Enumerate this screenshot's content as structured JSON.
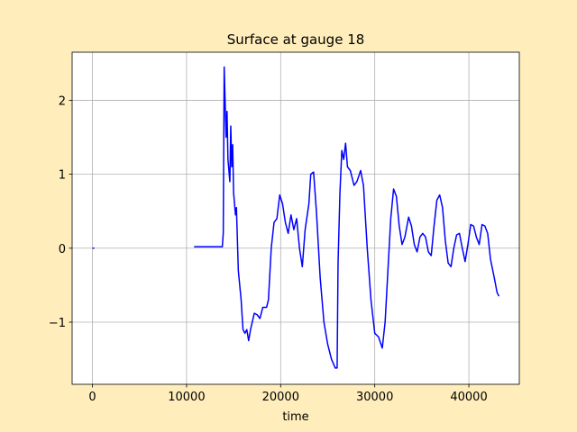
{
  "chart_data": {
    "type": "line",
    "title": "Surface at gauge 18",
    "x_label": "time",
    "x": [
      0,
      200,
      5000,
      10800,
      12000,
      13000,
      13800,
      13900,
      14000,
      14200,
      14300,
      14400,
      14600,
      14700,
      14800,
      14900,
      15000,
      15200,
      15300,
      15500,
      15800,
      16000,
      16200,
      16400,
      16600,
      16800,
      17200,
      17500,
      17800,
      18100,
      18500,
      18700,
      19000,
      19300,
      19600,
      19900,
      20200,
      20500,
      20800,
      21100,
      21400,
      21700,
      22000,
      22300,
      22600,
      23000,
      23200,
      23500,
      23800,
      24200,
      24600,
      25000,
      25400,
      25800,
      26000,
      26100,
      26300,
      26500,
      26700,
      26900,
      27100,
      27400,
      27800,
      28100,
      28500,
      28800,
      29200,
      29600,
      30000,
      30400,
      30800,
      31100,
      31400,
      31700,
      32000,
      32300,
      32600,
      32900,
      33200,
      33600,
      33900,
      34200,
      34500,
      34800,
      35100,
      35400,
      35700,
      36000,
      36300,
      36600,
      36900,
      37200,
      37500,
      37800,
      38100,
      38400,
      38700,
      39000,
      39300,
      39600,
      39900,
      40200,
      40500,
      40800,
      41100,
      41400,
      41700,
      42000,
      42300,
      42700,
      43000,
      43200
    ],
    "values": [
      0,
      0,
      null,
      0.02,
      0.02,
      0.02,
      0.02,
      0.2,
      2.45,
      1.5,
      1.85,
      1.2,
      0.9,
      1.65,
      1.1,
      1.4,
      0.75,
      0.45,
      0.55,
      -0.3,
      -0.7,
      -1.1,
      -1.15,
      -1.1,
      -1.25,
      -1.1,
      -0.88,
      -0.9,
      -0.95,
      -0.8,
      -0.8,
      -0.7,
      0,
      0.35,
      0.4,
      0.72,
      0.6,
      0.35,
      0.2,
      0.45,
      0.25,
      0.4,
      0,
      -0.25,
      0.25,
      0.6,
      1,
      1.03,
      0.5,
      -0.4,
      -1,
      -1.3,
      -1.5,
      -1.62,
      -1.62,
      -0.2,
      0.75,
      1.32,
      1.2,
      1.42,
      1.1,
      1.05,
      0.85,
      0.9,
      1.05,
      0.85,
      0,
      -0.7,
      -1.15,
      -1.2,
      -1.35,
      -1,
      -0.3,
      0.4,
      0.8,
      0.7,
      0.3,
      0.05,
      0.15,
      0.42,
      0.3,
      0.05,
      -0.05,
      0.15,
      0.2,
      0.15,
      -0.05,
      -0.1,
      0.3,
      0.65,
      0.72,
      0.55,
      0.1,
      -0.2,
      -0.25,
      0,
      0.18,
      0.2,
      0,
      -0.18,
      0.05,
      0.32,
      0.3,
      0.15,
      0.05,
      0.32,
      0.3,
      0.2,
      -0.15,
      -0.4,
      -0.6,
      -0.65
    ],
    "color": "#0000ff",
    "xlim": [
      -2160,
      45360
    ],
    "xticks": [
      0,
      10000,
      20000,
      30000,
      40000
    ],
    "ylim": [
      -1.84,
      2.65
    ],
    "yticks": [
      {
        "value": -1,
        "label": "−1"
      },
      0,
      1,
      2
    ],
    "grid": true
  }
}
